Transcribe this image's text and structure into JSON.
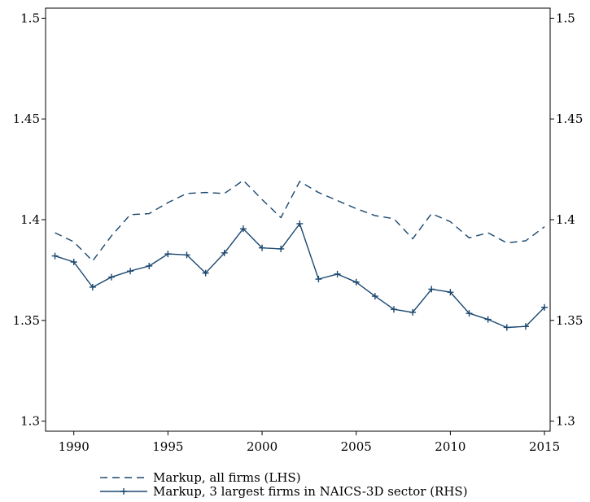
{
  "chart_data": {
    "type": "line",
    "title": "",
    "xlabel": "",
    "ylabel_left": "",
    "ylabel_right": "",
    "x": [
      1989,
      1990,
      1991,
      1992,
      1993,
      1994,
      1995,
      1996,
      1997,
      1998,
      1999,
      2000,
      2001,
      2002,
      2003,
      2004,
      2005,
      2006,
      2007,
      2008,
      2009,
      2010,
      2011,
      2012,
      2013,
      2014,
      2015
    ],
    "xlim": [
      1988.5,
      2015.3
    ],
    "x_ticks": [
      1990,
      1995,
      2000,
      2005,
      2010,
      2015
    ],
    "ylim_left": [
      1.295,
      1.505
    ],
    "ylim_right": [
      1.295,
      1.505
    ],
    "y_ticks_left": [
      "1.3",
      "1.35",
      "1.4",
      "1.45",
      "1.5"
    ],
    "y_ticks_right": [
      "1.3",
      "1.35",
      "1.4",
      "1.45",
      "1.5"
    ],
    "grid": false,
    "legend_position": "bottom",
    "color": "#1a476f",
    "series": [
      {
        "name": "Markup, all firms (LHS)",
        "axis": "left",
        "style": "dashed",
        "values": [
          1.3935,
          1.389,
          1.3795,
          1.392,
          1.4025,
          1.403,
          1.4085,
          1.413,
          1.4135,
          1.413,
          1.4195,
          1.41,
          1.401,
          1.419,
          1.4135,
          1.4095,
          1.4055,
          1.402,
          1.4005,
          1.3905,
          1.403,
          1.399,
          1.391,
          1.3935,
          1.3885,
          1.3895,
          1.3965
        ]
      },
      {
        "name": "Markup, 3 largest firms in NAICS-3D sector (RHS)",
        "axis": "right",
        "style": "solid-plus",
        "values": [
          1.382,
          1.379,
          1.3665,
          1.3715,
          1.3745,
          1.377,
          1.383,
          1.3825,
          1.3735,
          1.3835,
          1.3955,
          1.386,
          1.3855,
          1.398,
          1.3705,
          1.373,
          1.369,
          1.362,
          1.3555,
          1.354,
          1.3655,
          1.364,
          1.3535,
          1.3505,
          1.3465,
          1.347,
          1.3565
        ]
      }
    ]
  }
}
